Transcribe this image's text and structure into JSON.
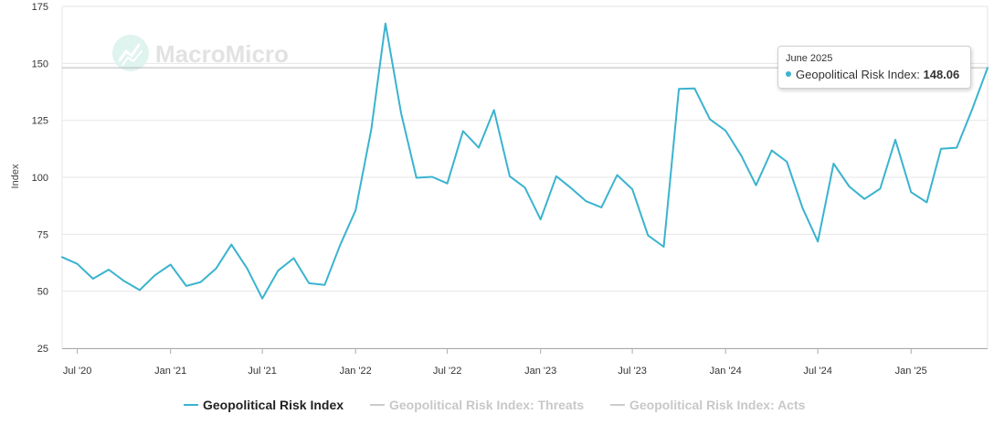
{
  "watermark": {
    "text": "MacroMicro"
  },
  "chart_data": {
    "type": "line",
    "ylabel": "Index",
    "ylim": [
      25,
      175
    ],
    "yticks": [
      25,
      50,
      75,
      100,
      125,
      150,
      175
    ],
    "xlim": [
      "2020-06-01",
      "2025-06-01"
    ],
    "xticks": [
      {
        "date": "2020-07-01",
        "label": "Jul '20"
      },
      {
        "date": "2021-01-01",
        "label": "Jan '21"
      },
      {
        "date": "2021-07-01",
        "label": "Jul '21"
      },
      {
        "date": "2022-01-01",
        "label": "Jan '22"
      },
      {
        "date": "2022-07-01",
        "label": "Jul '22"
      },
      {
        "date": "2023-01-01",
        "label": "Jan '23"
      },
      {
        "date": "2023-07-01",
        "label": "Jul '23"
      },
      {
        "date": "2024-01-01",
        "label": "Jan '24"
      },
      {
        "date": "2024-07-01",
        "label": "Jul '24"
      },
      {
        "date": "2025-01-01",
        "label": "Jan '25"
      }
    ],
    "grid": true,
    "legend_position": "bottom",
    "series": [
      {
        "name": "Geopolitical Risk Index",
        "color": "#3ab3cf",
        "active": true,
        "x": [
          "2020-06-01",
          "2020-07-01",
          "2020-08-01",
          "2020-09-01",
          "2020-10-01",
          "2020-11-01",
          "2020-12-01",
          "2021-01-01",
          "2021-02-01",
          "2021-03-01",
          "2021-04-01",
          "2021-05-01",
          "2021-06-01",
          "2021-07-01",
          "2021-08-01",
          "2021-09-01",
          "2021-10-01",
          "2021-11-01",
          "2021-12-01",
          "2022-01-01",
          "2022-02-01",
          "2022-03-01",
          "2022-04-01",
          "2022-05-01",
          "2022-06-01",
          "2022-07-01",
          "2022-08-01",
          "2022-09-01",
          "2022-10-01",
          "2022-11-01",
          "2022-12-01",
          "2023-01-01",
          "2023-02-01",
          "2023-03-01",
          "2023-04-01",
          "2023-05-01",
          "2023-06-01",
          "2023-07-01",
          "2023-08-01",
          "2023-09-01",
          "2023-10-01",
          "2023-11-01",
          "2023-12-01",
          "2024-01-01",
          "2024-02-01",
          "2024-03-01",
          "2024-04-01",
          "2024-05-01",
          "2024-06-01",
          "2024-07-01",
          "2024-08-01",
          "2024-09-01",
          "2024-10-01",
          "2024-11-01",
          "2024-12-01",
          "2025-01-01",
          "2025-02-01",
          "2025-03-01",
          "2025-04-01",
          "2025-05-01",
          "2025-06-01"
        ],
        "values": [
          65,
          62,
          55.5,
          59.5,
          54.5,
          50.5,
          57,
          61.7,
          52.3,
          54,
          60,
          70.5,
          60,
          46.8,
          59,
          64.5,
          53.5,
          52.8,
          70,
          85.5,
          121,
          167.5,
          128,
          99.8,
          100.2,
          97.3,
          120.3,
          113,
          129.5,
          100.5,
          95.5,
          81.5,
          100.5,
          95.5,
          89.5,
          86.8,
          101,
          94.8,
          74.5,
          69.5,
          138.8,
          139,
          125.5,
          120.5,
          109.5,
          96.5,
          111.8,
          106.8,
          86.5,
          71.8,
          106,
          96,
          90.5,
          95,
          116.5,
          93.5,
          89,
          112.5,
          113,
          129.5,
          148.06
        ]
      }
    ],
    "legend": [
      {
        "label": "Geopolitical Risk Index",
        "color": "#3ab3cf",
        "active": true
      },
      {
        "label": "Geopolitical Risk Index: Threats",
        "color": "#cccccc",
        "active": false
      },
      {
        "label": "Geopolitical Risk Index: Acts",
        "color": "#cccccc",
        "active": false
      }
    ],
    "tooltip": {
      "date_label": "June 2025",
      "series_label": "Geopolitical Risk Index",
      "separator": ":",
      "value_text": "148.06",
      "value": 148.06,
      "dot_color": "#3ab3cf"
    }
  }
}
